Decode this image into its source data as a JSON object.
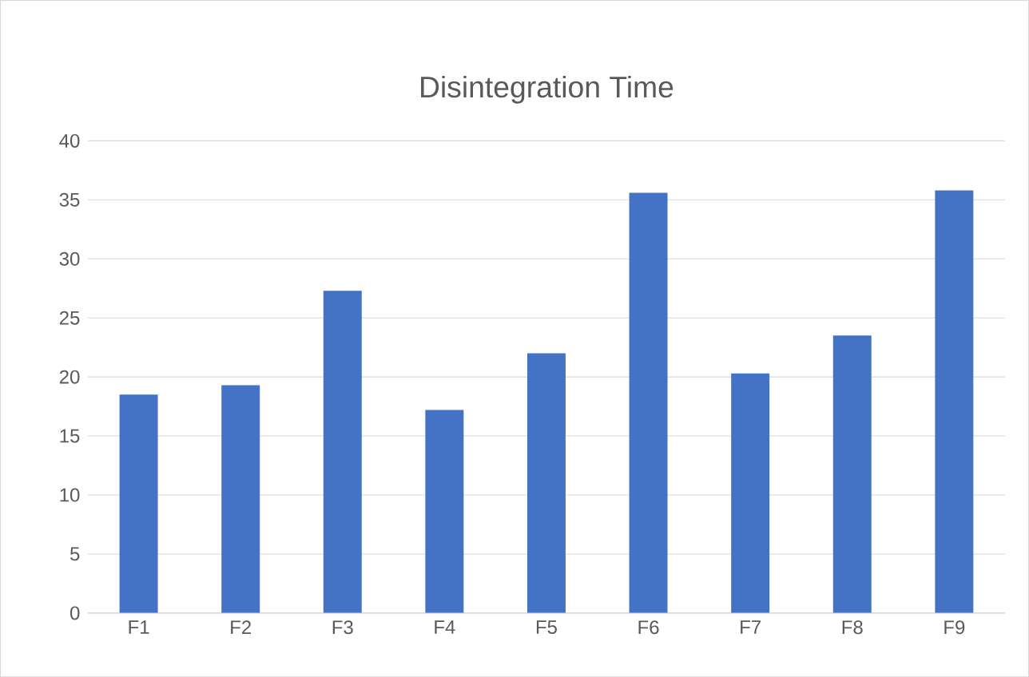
{
  "chart_data": {
    "type": "bar",
    "title": "Disintegration Time",
    "categories": [
      "F1",
      "F2",
      "F3",
      "F4",
      "F5",
      "F6",
      "F7",
      "F8",
      "F9"
    ],
    "values": [
      18.5,
      19.3,
      27.3,
      17.2,
      22.0,
      35.6,
      20.3,
      23.5,
      35.8
    ],
    "color": "#4472c4",
    "ylim": [
      0,
      40
    ],
    "yticks": [
      0,
      5,
      10,
      15,
      20,
      25,
      30,
      35,
      40
    ],
    "grid": "y"
  }
}
